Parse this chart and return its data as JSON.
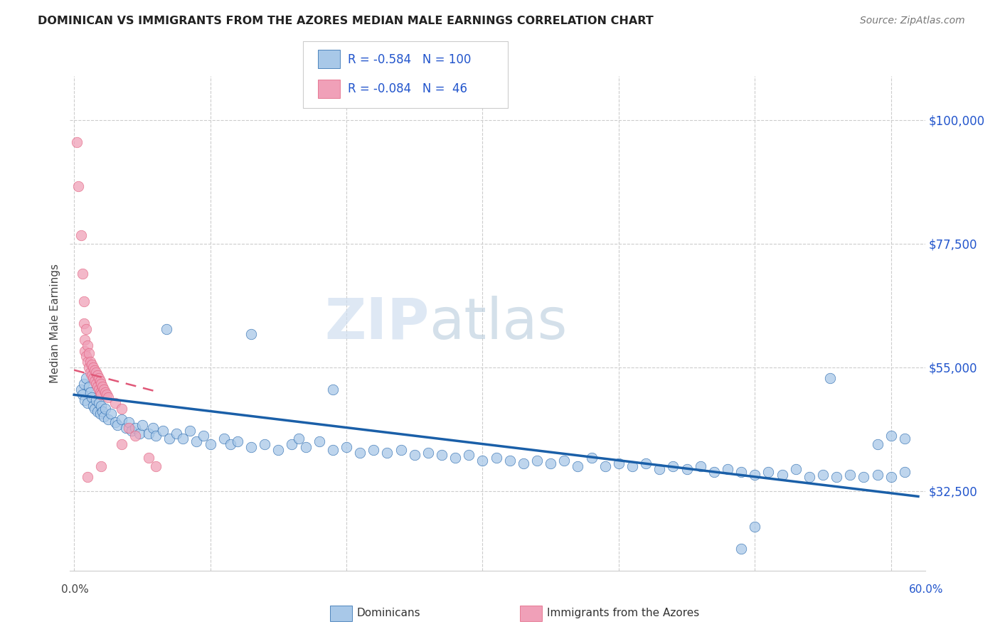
{
  "title": "DOMINICAN VS IMMIGRANTS FROM THE AZORES MEDIAN MALE EARNINGS CORRELATION CHART",
  "source": "Source: ZipAtlas.com",
  "ylabel": "Median Male Earnings",
  "ytick_values": [
    32500,
    55000,
    77500,
    100000
  ],
  "ymin": 18000,
  "ymax": 108000,
  "xmin": -0.003,
  "xmax": 0.625,
  "legend_label_blue": "Dominicans",
  "legend_label_pink": "Immigrants from the Azores",
  "blue_color": "#a8c8e8",
  "pink_color": "#f0a0b8",
  "trendline_blue": "#1a5fa8",
  "trendline_pink": "#e05878",
  "watermark_zip": "ZIP",
  "watermark_atlas": "atlas",
  "blue_trend_x": [
    0.0,
    0.62
  ],
  "blue_trend_y": [
    50000,
    31500
  ],
  "pink_trend_x": [
    0.0,
    0.062
  ],
  "pink_trend_y": [
    54500,
    50500
  ],
  "blue_scatter": [
    [
      0.005,
      51000
    ],
    [
      0.006,
      50000
    ],
    [
      0.007,
      52000
    ],
    [
      0.008,
      49000
    ],
    [
      0.009,
      53000
    ],
    [
      0.01,
      48500
    ],
    [
      0.011,
      51500
    ],
    [
      0.012,
      50500
    ],
    [
      0.013,
      49500
    ],
    [
      0.014,
      48000
    ],
    [
      0.015,
      47500
    ],
    [
      0.016,
      49000
    ],
    [
      0.017,
      47000
    ],
    [
      0.018,
      48500
    ],
    [
      0.019,
      46500
    ],
    [
      0.02,
      48000
    ],
    [
      0.021,
      47000
    ],
    [
      0.022,
      46000
    ],
    [
      0.023,
      47500
    ],
    [
      0.025,
      45500
    ],
    [
      0.027,
      46500
    ],
    [
      0.03,
      45000
    ],
    [
      0.032,
      44500
    ],
    [
      0.035,
      45500
    ],
    [
      0.038,
      44000
    ],
    [
      0.04,
      45000
    ],
    [
      0.042,
      43500
    ],
    [
      0.045,
      44000
    ],
    [
      0.048,
      43000
    ],
    [
      0.05,
      44500
    ],
    [
      0.055,
      43000
    ],
    [
      0.058,
      44000
    ],
    [
      0.06,
      42500
    ],
    [
      0.065,
      43500
    ],
    [
      0.07,
      42000
    ],
    [
      0.075,
      43000
    ],
    [
      0.08,
      42000
    ],
    [
      0.085,
      43500
    ],
    [
      0.09,
      41500
    ],
    [
      0.095,
      42500
    ],
    [
      0.1,
      41000
    ],
    [
      0.11,
      42000
    ],
    [
      0.115,
      41000
    ],
    [
      0.12,
      41500
    ],
    [
      0.13,
      40500
    ],
    [
      0.14,
      41000
    ],
    [
      0.15,
      40000
    ],
    [
      0.16,
      41000
    ],
    [
      0.165,
      42000
    ],
    [
      0.17,
      40500
    ],
    [
      0.18,
      41500
    ],
    [
      0.19,
      40000
    ],
    [
      0.2,
      40500
    ],
    [
      0.21,
      39500
    ],
    [
      0.22,
      40000
    ],
    [
      0.23,
      39500
    ],
    [
      0.24,
      40000
    ],
    [
      0.25,
      39000
    ],
    [
      0.26,
      39500
    ],
    [
      0.27,
      39000
    ],
    [
      0.28,
      38500
    ],
    [
      0.29,
      39000
    ],
    [
      0.3,
      38000
    ],
    [
      0.31,
      38500
    ],
    [
      0.32,
      38000
    ],
    [
      0.33,
      37500
    ],
    [
      0.34,
      38000
    ],
    [
      0.35,
      37500
    ],
    [
      0.36,
      38000
    ],
    [
      0.37,
      37000
    ],
    [
      0.38,
      38500
    ],
    [
      0.39,
      37000
    ],
    [
      0.4,
      37500
    ],
    [
      0.41,
      37000
    ],
    [
      0.42,
      37500
    ],
    [
      0.43,
      36500
    ],
    [
      0.44,
      37000
    ],
    [
      0.45,
      36500
    ],
    [
      0.46,
      37000
    ],
    [
      0.47,
      36000
    ],
    [
      0.48,
      36500
    ],
    [
      0.49,
      36000
    ],
    [
      0.5,
      35500
    ],
    [
      0.51,
      36000
    ],
    [
      0.52,
      35500
    ],
    [
      0.53,
      36500
    ],
    [
      0.54,
      35000
    ],
    [
      0.55,
      35500
    ],
    [
      0.56,
      35000
    ],
    [
      0.57,
      35500
    ],
    [
      0.58,
      35000
    ],
    [
      0.59,
      35500
    ],
    [
      0.6,
      35000
    ],
    [
      0.61,
      36000
    ],
    [
      0.068,
      62000
    ],
    [
      0.13,
      61000
    ],
    [
      0.19,
      51000
    ],
    [
      0.5,
      26000
    ],
    [
      0.49,
      22000
    ],
    [
      0.555,
      53000
    ],
    [
      0.59,
      41000
    ],
    [
      0.6,
      42500
    ],
    [
      0.61,
      42000
    ]
  ],
  "pink_scatter": [
    [
      0.002,
      96000
    ],
    [
      0.003,
      88000
    ],
    [
      0.005,
      79000
    ],
    [
      0.006,
      72000
    ],
    [
      0.007,
      67000
    ],
    [
      0.007,
      63000
    ],
    [
      0.008,
      60000
    ],
    [
      0.008,
      58000
    ],
    [
      0.009,
      62000
    ],
    [
      0.009,
      57000
    ],
    [
      0.01,
      59000
    ],
    [
      0.01,
      56000
    ],
    [
      0.011,
      57500
    ],
    [
      0.011,
      55000
    ],
    [
      0.012,
      56000
    ],
    [
      0.012,
      54000
    ],
    [
      0.013,
      55500
    ],
    [
      0.013,
      53500
    ],
    [
      0.014,
      55000
    ],
    [
      0.014,
      53000
    ],
    [
      0.015,
      54500
    ],
    [
      0.015,
      52500
    ],
    [
      0.016,
      54000
    ],
    [
      0.016,
      52000
    ],
    [
      0.017,
      53500
    ],
    [
      0.017,
      51500
    ],
    [
      0.018,
      53000
    ],
    [
      0.018,
      51000
    ],
    [
      0.019,
      52500
    ],
    [
      0.019,
      50500
    ],
    [
      0.02,
      52000
    ],
    [
      0.02,
      50000
    ],
    [
      0.021,
      51500
    ],
    [
      0.022,
      51000
    ],
    [
      0.023,
      50500
    ],
    [
      0.024,
      50000
    ],
    [
      0.025,
      49500
    ],
    [
      0.03,
      48500
    ],
    [
      0.035,
      47500
    ],
    [
      0.04,
      44000
    ],
    [
      0.02,
      37000
    ],
    [
      0.035,
      41000
    ],
    [
      0.045,
      42500
    ],
    [
      0.01,
      35000
    ],
    [
      0.055,
      38500
    ],
    [
      0.06,
      37000
    ]
  ]
}
